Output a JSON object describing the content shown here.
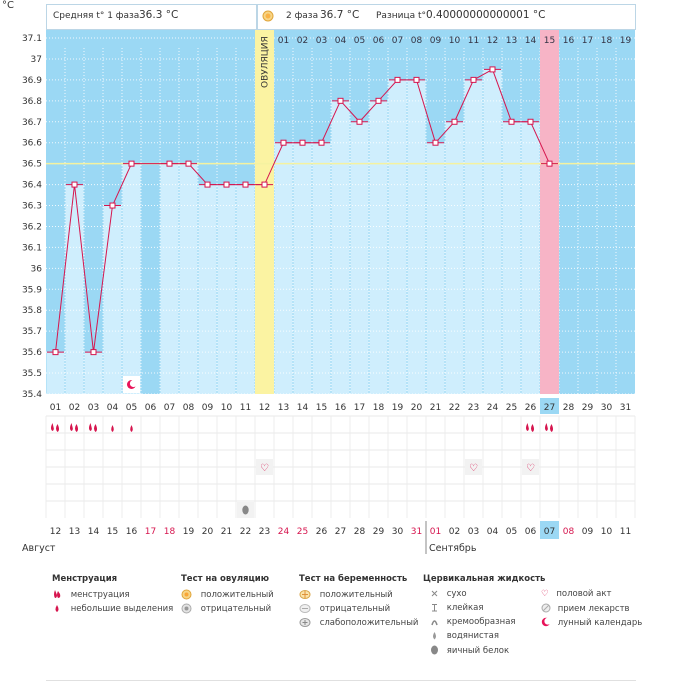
{
  "unit_label": "°C",
  "header": {
    "phase1_label": "Средняя t° 1 фаза",
    "phase1_value": "36.3 °C",
    "phase2_label": "2 фаза",
    "phase2_value": "36.7 °C",
    "diff_label": "Разница t°",
    "diff_value": "0.40000000000001 °C"
  },
  "ovulation_label": "ОВУЛЯЦИЯ",
  "chart_data": {
    "type": "line",
    "title": "",
    "ylabel": "°C",
    "ylim": [
      35.4,
      37.1
    ],
    "yticks": [
      "37.1",
      "37",
      "36.9",
      "36.8",
      "36.7",
      "36.6",
      "36.5",
      "36.4",
      "36.3",
      "36.2",
      "36.1",
      "36",
      "35.9",
      "35.8",
      "35.7",
      "35.6",
      "35.5",
      "35.4"
    ],
    "cycle_days_top": [
      "01",
      "02",
      "03",
      "04",
      "05",
      "06",
      "07",
      "08",
      "09",
      "10",
      "11",
      "12",
      "13",
      "14",
      "15",
      "16",
      "17",
      "18",
      "19",
      "20",
      "21",
      "22",
      "23",
      "24",
      "25",
      "26",
      "27",
      "28",
      "29",
      "30",
      "31"
    ],
    "cycle_days_header": [
      "01",
      "02",
      "03",
      "04",
      "05",
      "06",
      "07",
      "08",
      "09",
      "10",
      "11",
      "12",
      "13",
      "14",
      "15",
      "16",
      "17",
      "18",
      "19"
    ],
    "dates": [
      "12",
      "13",
      "14",
      "15",
      "16",
      "17",
      "18",
      "19",
      "20",
      "21",
      "22",
      "23",
      "24",
      "25",
      "26",
      "27",
      "28",
      "29",
      "30",
      "31",
      "01",
      "02",
      "03",
      "04",
      "05",
      "06",
      "07",
      "08",
      "09",
      "10",
      "11"
    ],
    "red_date_indices": [
      5,
      6,
      12,
      13,
      19,
      20,
      27
    ],
    "months": [
      "Август",
      "Сентябрь"
    ],
    "temperatures": [
      35.6,
      36.4,
      35.6,
      36.3,
      36.5,
      null,
      36.5,
      36.5,
      36.4,
      36.4,
      36.4,
      36.4,
      36.6,
      36.6,
      36.6,
      36.8,
      36.7,
      36.8,
      36.9,
      36.9,
      36.6,
      36.7,
      36.9,
      36.95,
      36.7,
      36.7,
      36.5
    ],
    "coverline": 36.5,
    "ovulation_day_index": 11,
    "current_day_index": 26
  },
  "markers": {
    "menstruation_big": [
      0,
      1,
      2,
      25,
      26
    ],
    "menstruation_small": [
      3,
      4
    ],
    "intercourse": [
      11,
      22,
      25
    ],
    "egg_white": [
      10
    ],
    "lunar": [
      4
    ]
  },
  "legend": {
    "menstruation": {
      "title": "Менструация",
      "items": [
        "менструация",
        "небольшие выделения"
      ]
    },
    "ovulation_test": {
      "title": "Тест на овуляцию",
      "items": [
        "положительный",
        "отрицательный"
      ]
    },
    "pregnancy_test": {
      "title": "Тест на беременность",
      "items": [
        "положительный",
        "отрицательный",
        "слабоположительный"
      ]
    },
    "cervical": {
      "title": "Цервикальная жидкость",
      "items": [
        "сухо",
        "клейкая",
        "кремообразная",
        "водянистая",
        "яичный белок"
      ]
    },
    "other": {
      "items": [
        "половой акт",
        "прием лекарств",
        "лунный календарь"
      ]
    }
  },
  "colors": {
    "panel_blue": "#9bd8f4",
    "bar_fill": "#cfeefd",
    "line": "#d6154e",
    "ovulation": "#fbf3a2",
    "current": "#f7b4c6",
    "coverline": "#f5f2a0"
  }
}
